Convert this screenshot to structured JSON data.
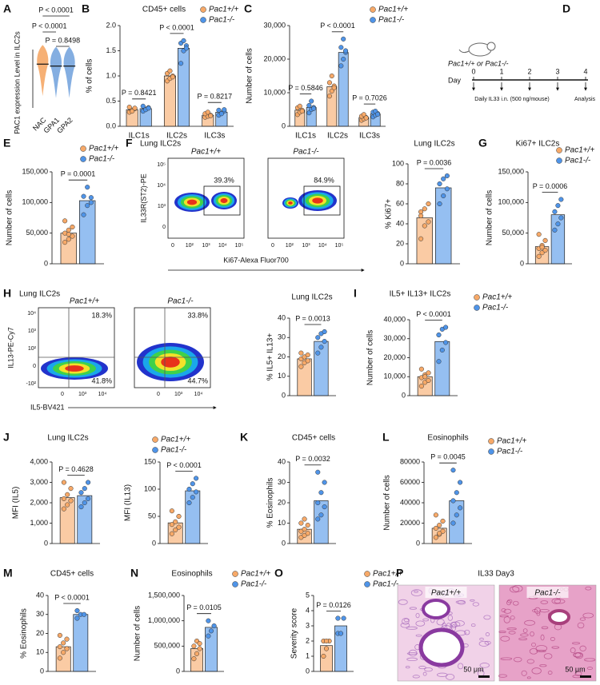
{
  "chart_data": [
    {
      "type": "dot",
      "ylabel": "PAC1 expression Level in ILC2s",
      "categories": [
        "NAC",
        "GPA1",
        "GPA2"
      ],
      "values": [
        2.25,
        2.15,
        2.15
      ],
      "colors": [
        "#f5a25d",
        "#6fa0dc",
        "#6fa0dc"
      ],
      "ylim": [
        0,
        3
      ],
      "annotations": [
        "P < 0.0001",
        "P < 0.0001",
        "P = 0.8498"
      ]
    },
    {
      "type": "bar",
      "title": "CD45+ cells",
      "ylabel": "% of cells",
      "categories": [
        "ILC1s",
        "ILC2s",
        "ILC3s"
      ],
      "ylim": [
        0,
        2
      ],
      "yticks": [
        {
          "value": 0,
          "label": "0.0"
        },
        0.5,
        {
          "value": 1,
          "label": "1.0"
        },
        1.5,
        {
          "value": 2,
          "label": "2.0"
        }
      ],
      "annotations": [
        "P = 0.8421",
        "P < 0.0001",
        "P = 0.8217"
      ],
      "series": [
        {
          "name": "Pac1+/+",
          "color": "#f7a968",
          "values": [
            0.33,
            1.0,
            0.22
          ],
          "points": [
            [
              0.28,
              0.32,
              0.35,
              0.38,
              0.3,
              0.36
            ],
            [
              0.9,
              0.95,
              1.0,
              1.05,
              1.1,
              0.98
            ],
            [
              0.18,
              0.2,
              0.22,
              0.25,
              0.28,
              0.21
            ]
          ]
        },
        {
          "name": "Pac1-/-",
          "color": "#4f94e8",
          "values": [
            0.35,
            1.55,
            0.28
          ],
          "points": [
            [
              0.3,
              0.34,
              0.37,
              0.4,
              0.33,
              0.36
            ],
            [
              1.25,
              1.5,
              1.6,
              1.65,
              1.7,
              1.55
            ],
            [
              0.22,
              0.26,
              0.3,
              0.32,
              0.25,
              0.33
            ]
          ]
        }
      ]
    },
    {
      "type": "bar",
      "ylabel": "Number of cells",
      "categories": [
        "ILC1s",
        "ILC2s",
        "ILC3s"
      ],
      "ylim": [
        0,
        30000
      ],
      "yticks": [
        0,
        {
          "value": 10000,
          "label": "10,000"
        },
        {
          "value": 20000,
          "label": "20,000"
        },
        {
          "value": 30000,
          "label": "30,000"
        }
      ],
      "annotations": [
        "P = 0.5846",
        "P < 0.0001",
        "P = 0.7026"
      ],
      "series": [
        {
          "name": "Pac1+/+",
          "color": "#f7a968",
          "values": [
            4800,
            11800,
            2600
          ],
          "points": [
            [
              3500,
              4200,
              4800,
              5500,
              6000,
              4500
            ],
            [
              9000,
              10500,
              12000,
              13000,
              15000,
              11500
            ],
            [
              1800,
              2200,
              2600,
              3000,
              3500,
              2500
            ]
          ]
        },
        {
          "name": "Pac1-/-",
          "color": "#4f94e8",
          "values": [
            5600,
            22000,
            3700
          ],
          "points": [
            [
              4000,
              5000,
              5600,
              6200,
              7500,
              5300
            ],
            [
              18000,
              20000,
              22000,
              23500,
              26000,
              22500
            ],
            [
              2800,
              3300,
              3800,
              4200,
              4500,
              3600
            ]
          ]
        }
      ]
    },
    {
      "type": "bar",
      "ylabel": "Number of cells",
      "categories": [
        null
      ],
      "ylim": [
        0,
        150000
      ],
      "yticks": [
        0,
        {
          "value": 50000,
          "label": "50,000"
        },
        {
          "value": 100000,
          "label": "100,000"
        },
        {
          "value": 150000,
          "label": "150,000"
        }
      ],
      "annotations": [
        "P = 0.0001"
      ],
      "series": [
        {
          "name": "Pac1+/+",
          "color": "#f7a968",
          "values": [
            50000
          ],
          "points": [
            [
              35000,
              40000,
              45000,
              50000,
              55000,
              60000,
              70000,
              48000
            ]
          ]
        },
        {
          "name": "Pac1-/-",
          "color": "#4f94e8",
          "values": [
            103000
          ],
          "points": [
            [
              80000,
              95000,
              100000,
              110000,
              125000,
              108000
            ]
          ]
        }
      ]
    },
    {
      "type": "bar",
      "title": "Lung ILC2s",
      "ylabel": "% Ki67+",
      "categories": [
        null
      ],
      "ylim": [
        0,
        100
      ],
      "yticks": [
        0,
        20,
        40,
        60,
        80,
        100
      ],
      "annotations": [
        "P = 0.0036"
      ],
      "series": [
        {
          "color": "#f7a968",
          "values": [
            46
          ],
          "points": [
            [
              25,
              38,
              42,
              48,
              55,
              60,
              52
            ]
          ]
        },
        {
          "color": "#4f94e8",
          "values": [
            76
          ],
          "points": [
            [
              60,
              68,
              75,
              80,
              85,
              88
            ]
          ]
        }
      ]
    },
    {
      "type": "bar",
      "title": "Ki67+ ILC2s",
      "ylabel": "Number of cells",
      "categories": [
        null
      ],
      "ylim": [
        0,
        150000
      ],
      "yticks": [
        0,
        {
          "value": 50000,
          "label": "50,000"
        },
        {
          "value": 100000,
          "label": "100,000"
        },
        {
          "value": 150000,
          "label": "150,000"
        }
      ],
      "annotations": [
        "P = 0.0006"
      ],
      "series": [
        {
          "name": "Pac1+/+",
          "color": "#f7a968",
          "values": [
            28000
          ],
          "points": [
            [
              12000,
              18000,
              22000,
              25000,
              30000,
              38000,
              48000,
              27000
            ]
          ]
        },
        {
          "name": "Pac1-/-",
          "color": "#4f94e8",
          "values": [
            80000
          ],
          "points": [
            [
              55000,
              65000,
              75000,
              85000,
              95000,
              105000
            ]
          ]
        }
      ]
    },
    {
      "type": "bar",
      "title": "Lung ILC2s",
      "ylabel": "% IL5+ IL13+",
      "categories": [
        null
      ],
      "ylim": [
        0,
        40
      ],
      "yticks": [
        0,
        10,
        20,
        30,
        40
      ],
      "annotations": [
        "P = 0.0013"
      ],
      "series": [
        {
          "color": "#f7a968",
          "values": [
            19
          ],
          "points": [
            [
              15,
              17,
              18,
              19,
              20,
              21,
              22
            ]
          ]
        },
        {
          "color": "#4f94e8",
          "values": [
            28
          ],
          "points": [
            [
              22,
              25,
              28,
              30,
              32,
              33
            ]
          ]
        }
      ]
    },
    {
      "type": "bar",
      "title": "IL5+ IL13+ ILC2s",
      "ylabel": "Number of cells",
      "categories": [
        null
      ],
      "ylim": [
        0,
        40000
      ],
      "yticks": [
        0,
        {
          "value": 10000,
          "label": "10,000"
        },
        {
          "value": 20000,
          "label": "20,000"
        },
        {
          "value": 30000,
          "label": "30,000"
        },
        {
          "value": 40000,
          "label": "40,000"
        }
      ],
      "annotations": [
        "P < 0.0001"
      ],
      "series": [
        {
          "name": "Pac1+/+",
          "color": "#f7a968",
          "values": [
            10000
          ],
          "points": [
            [
              5000,
              7000,
              8000,
              9500,
              11000,
              12000,
              14000,
              10000
            ]
          ]
        },
        {
          "name": "Pac1-/-",
          "color": "#4f94e8",
          "values": [
            28500
          ],
          "points": [
            [
              18000,
              24000,
              28000,
              32000,
              35000,
              36000
            ]
          ]
        }
      ]
    },
    {
      "type": "bar",
      "title": "Lung ILC2s",
      "ylabel": "MFI (IL5)",
      "categories": [
        null
      ],
      "ylim": [
        0,
        4000
      ],
      "yticks": [
        0,
        {
          "value": 1000,
          "label": "1,000"
        },
        {
          "value": 2000,
          "label": "2,000"
        },
        {
          "value": 3000,
          "label": "3,000"
        },
        {
          "value": 4000,
          "label": "4,000"
        }
      ],
      "annotations": [
        "P = 0.4628"
      ],
      "series": [
        {
          "name": "Pac1+/+",
          "color": "#f7a968",
          "values": [
            2250
          ],
          "points": [
            [
              1700,
              1900,
              2100,
              2200,
              2400,
              2700,
              3000
            ]
          ]
        },
        {
          "name": "Pac1-/-",
          "color": "#4f94e8",
          "values": [
            2350
          ],
          "points": [
            [
              1800,
              2000,
              2200,
              2500,
              2700,
              3000
            ]
          ]
        }
      ]
    },
    {
      "type": "bar",
      "ylabel": "MFI (IL13)",
      "categories": [
        null
      ],
      "ylim": [
        0,
        150
      ],
      "yticks": [
        0,
        50,
        100,
        150
      ],
      "annotations": [
        "P < 0.0001"
      ],
      "series": [
        {
          "color": "#f7a968",
          "values": [
            38
          ],
          "points": [
            [
              18,
              25,
              30,
              35,
              40,
              50,
              60
            ]
          ]
        },
        {
          "color": "#4f94e8",
          "values": [
            97
          ],
          "points": [
            [
              75,
              85,
              95,
              100,
              110,
              120
            ]
          ]
        }
      ]
    },
    {
      "type": "bar",
      "title": "CD45+ cells",
      "ylabel": "% Eosinophils",
      "categories": [
        null
      ],
      "ylim": [
        0,
        40
      ],
      "yticks": [
        0,
        10,
        20,
        30,
        40
      ],
      "annotations": [
        "P = 0.0032"
      ],
      "series": [
        {
          "color": "#f7a968",
          "values": [
            7
          ],
          "points": [
            [
              3,
              4,
              5,
              6,
              7,
              9,
              10,
              12
            ]
          ]
        },
        {
          "color": "#4f94e8",
          "values": [
            21
          ],
          "points": [
            [
              12,
              14,
              18,
              20,
              25,
              30,
              35
            ]
          ]
        }
      ]
    },
    {
      "type": "bar",
      "title": "Eosinophils",
      "ylabel": "Number of cells",
      "categories": [
        null
      ],
      "ylim": [
        0,
        80000
      ],
      "yticks": [
        0,
        20000,
        40000,
        60000,
        80000
      ],
      "annotations": [
        "P = 0.0045"
      ],
      "series": [
        {
          "name": "Pac1+/+",
          "color": "#f7a968",
          "values": [
            15000
          ],
          "points": [
            [
              6000,
              9000,
              12000,
              15000,
              18000,
              22000,
              28000,
              10000
            ]
          ]
        },
        {
          "name": "Pac1-/-",
          "color": "#4f94e8",
          "values": [
            42000
          ],
          "points": [
            [
              20000,
              28000,
              35000,
              42000,
              50000,
              60000,
              72000
            ]
          ]
        }
      ]
    },
    {
      "type": "bar",
      "title": "CD45+ cells",
      "ylabel": "% Eosinophils",
      "categories": [
        null
      ],
      "ylim": [
        0,
        40
      ],
      "yticks": [
        0,
        10,
        20,
        30,
        40
      ],
      "annotations": [
        "P < 0.0001"
      ],
      "series": [
        {
          "color": "#f7a968",
          "values": [
            13
          ],
          "points": [
            [
              7,
              10,
              12,
              13,
              15,
              17,
              19
            ]
          ]
        },
        {
          "color": "#4f94e8",
          "values": [
            30
          ],
          "points": [
            [
              28,
              30,
              30,
              32
            ]
          ]
        }
      ]
    },
    {
      "type": "bar",
      "title": "Eosinophils",
      "ylabel": "Number of cells",
      "categories": [
        null
      ],
      "ylim": [
        0,
        1500000
      ],
      "yticks": [
        0,
        {
          "value": 500000,
          "label": "500,000"
        },
        {
          "value": 1000000,
          "label": "1,000,000"
        },
        {
          "value": 1500000,
          "label": "1,500,000"
        }
      ],
      "annotations": [
        "P = 0.0105"
      ],
      "series": [
        {
          "name": "Pac1+/+",
          "color": "#f7a968",
          "values": [
            450000
          ],
          "points": [
            [
              250000,
              350000,
              450000,
              500000,
              600000,
              550000
            ]
          ]
        },
        {
          "name": "Pac1-/-",
          "color": "#4f94e8",
          "values": [
            870000
          ],
          "points": [
            [
              700000,
              800000,
              900000,
              1000000
            ]
          ]
        }
      ]
    },
    {
      "type": "bar",
      "ylabel": "Severity score",
      "categories": [
        null
      ],
      "ylim": [
        0,
        5
      ],
      "yticks": [
        0,
        1,
        2,
        3,
        4,
        5
      ],
      "annotations": [
        "P = 0.0126"
      ],
      "series": [
        {
          "name": "Pac1+/+",
          "color": "#f7a968",
          "values": [
            1.7
          ],
          "points": [
            [
              1,
              1.5,
              2,
              2,
              2
            ]
          ]
        },
        {
          "name": "Pac1-/-",
          "color": "#4f94e8",
          "values": [
            3.0
          ],
          "points": [
            [
              2.5,
              2.5,
              3.5,
              3.5
            ]
          ]
        }
      ]
    }
  ],
  "panel_labels": [
    "A",
    "B",
    "C",
    "D",
    "E",
    "F",
    "G",
    "H",
    "I",
    "J",
    "K",
    "L",
    "M",
    "N",
    "O",
    "P"
  ],
  "flow_f": {
    "title": "Lung ILC2s",
    "ylabel": "IL33R(ST2)-PE",
    "xlabel": "Ki67-Alexa Fluor700",
    "yticks": [
      "10⁵",
      "10⁴",
      "10³",
      "0"
    ],
    "xticks": [
      "0",
      "10²",
      "10³",
      "10⁴",
      "10⁵"
    ],
    "plots": [
      {
        "name": "Pac1+/+",
        "gate": "39.3%"
      },
      {
        "name": "Pac1-/-",
        "gate": "84.9%"
      }
    ]
  },
  "flow_h": {
    "title": "Lung ILC2s",
    "ylabel": "IL13-PE-Cy7",
    "xlabel": "IL5-BV421",
    "yticks": [
      "10⁴",
      "10³",
      "10²",
      "0",
      "-10²"
    ],
    "xticks": [
      "0",
      "10³",
      "10⁴"
    ],
    "plots": [
      {
        "name": "Pac1+/+",
        "quadrants": [
          "18.3%",
          "41.8%"
        ]
      },
      {
        "name": "Pac1-/-",
        "quadrants": [
          "33.8%",
          "44.7%"
        ]
      }
    ]
  },
  "diagram_d": {
    "strain": "Pac1+/+ or Pac1-/-",
    "day_label": "Day",
    "days": [
      "0",
      "1",
      "2",
      "3",
      "4"
    ],
    "treatment": "Daily IL33 i.n. (500 ng/mouse)",
    "endpoint": "Analysis"
  },
  "histology_p": {
    "title": "IL33 Day3",
    "images": [
      {
        "name": "Pac1+/+",
        "scale": "50 μm"
      },
      {
        "name": "Pac1-/-",
        "scale": "50 μm"
      }
    ]
  }
}
